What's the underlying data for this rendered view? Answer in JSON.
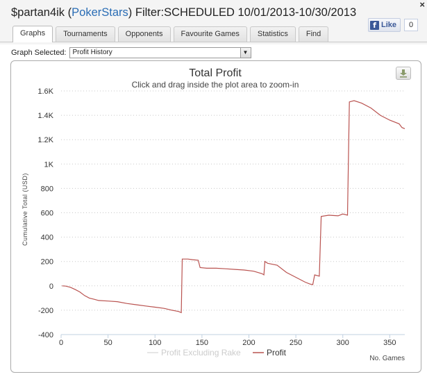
{
  "header": {
    "player": "$partan4ik",
    "open_paren": "(",
    "site": "PokerStars",
    "close_paren": ")",
    "filter": "Filter:SCHEDULED 10/01/2013-10/30/2013",
    "close_label": "×"
  },
  "facebook": {
    "like_label": "Like",
    "like_icon": "f",
    "count": "0"
  },
  "tabs": [
    {
      "label": "Graphs",
      "active": true
    },
    {
      "label": "Tournaments"
    },
    {
      "label": "Opponents"
    },
    {
      "label": "Favourite Games"
    },
    {
      "label": "Statistics"
    },
    {
      "label": "Find"
    }
  ],
  "graph_select": {
    "label": "Graph Selected:",
    "value": "Profit History"
  },
  "chart_data": {
    "type": "line",
    "title": "Total Profit",
    "subtitle": "Click and drag inside the plot area to zoom-in",
    "ylabel": "Cumulative Total (USD)",
    "xlabel": "No. Games",
    "xlim": [
      0,
      366
    ],
    "ylim": [
      -400,
      1600
    ],
    "x_ticks": [
      0,
      50,
      100,
      150,
      200,
      250,
      300,
      350
    ],
    "y_ticks": [
      -400,
      -200,
      0,
      200,
      400,
      600,
      800,
      1000,
      1200,
      1400,
      1600
    ],
    "y_tick_labels": [
      "-400",
      "-200",
      "0",
      "200",
      "400",
      "600",
      "800",
      "1K",
      "1.2K",
      "1.4K",
      "1.6K"
    ],
    "grid": "horizontal-dotted",
    "legend_position": "bottom",
    "series": [
      {
        "name": "Profit Excluding Rake",
        "color": "#e0e0e0",
        "hidden": true,
        "points": []
      },
      {
        "name": "Profit",
        "color": "#b9524f",
        "points": [
          [
            1,
            0
          ],
          [
            5,
            -2
          ],
          [
            10,
            -12
          ],
          [
            15,
            -30
          ],
          [
            20,
            -50
          ],
          [
            25,
            -80
          ],
          [
            30,
            -100
          ],
          [
            35,
            -110
          ],
          [
            40,
            -120
          ],
          [
            50,
            -125
          ],
          [
            60,
            -130
          ],
          [
            70,
            -145
          ],
          [
            80,
            -155
          ],
          [
            90,
            -165
          ],
          [
            100,
            -175
          ],
          [
            110,
            -185
          ],
          [
            118,
            -200
          ],
          [
            125,
            -210
          ],
          [
            128,
            -220
          ],
          [
            129,
            220
          ],
          [
            135,
            220
          ],
          [
            140,
            215
          ],
          [
            146,
            210
          ],
          [
            148,
            150
          ],
          [
            155,
            145
          ],
          [
            165,
            145
          ],
          [
            175,
            140
          ],
          [
            185,
            135
          ],
          [
            195,
            130
          ],
          [
            205,
            120
          ],
          [
            214,
            100
          ],
          [
            216,
            90
          ],
          [
            217,
            200
          ],
          [
            220,
            185
          ],
          [
            230,
            170
          ],
          [
            240,
            110
          ],
          [
            250,
            70
          ],
          [
            260,
            30
          ],
          [
            265,
            15
          ],
          [
            268,
            10
          ],
          [
            270,
            90
          ],
          [
            275,
            80
          ],
          [
            277,
            570
          ],
          [
            285,
            580
          ],
          [
            295,
            575
          ],
          [
            300,
            590
          ],
          [
            305,
            580
          ],
          [
            307,
            1510
          ],
          [
            312,
            1520
          ],
          [
            320,
            1500
          ],
          [
            330,
            1460
          ],
          [
            340,
            1400
          ],
          [
            350,
            1360
          ],
          [
            360,
            1330
          ],
          [
            363,
            1300
          ],
          [
            366,
            1290
          ]
        ]
      }
    ]
  },
  "icons": {
    "export": "download-icon"
  }
}
